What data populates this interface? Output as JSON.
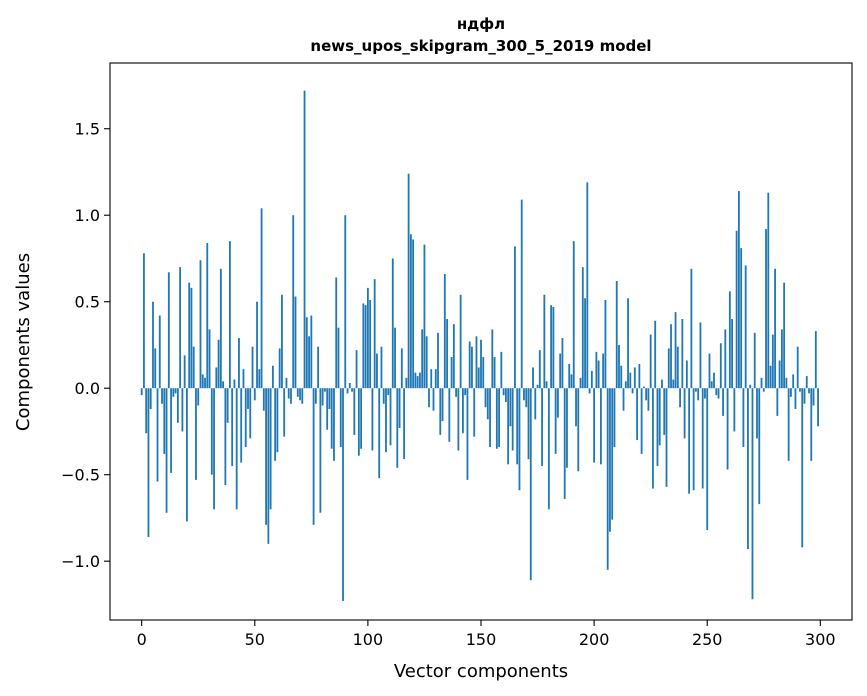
{
  "chart_data": {
    "type": "bar",
    "title": "ндфл",
    "subtitle": "news_upos_skipgram_300_5_2019 model",
    "xlabel": "Vector components",
    "ylabel": "Components values",
    "xlim": [
      -14,
      314
    ],
    "ylim": [
      -1.34,
      1.88
    ],
    "xticks": [
      0,
      50,
      100,
      150,
      200,
      250,
      300
    ],
    "yticks": [
      -1.0,
      -0.5,
      0.0,
      0.5,
      1.0,
      1.5
    ],
    "xtick_labels": [
      "0",
      "50",
      "100",
      "150",
      "200",
      "250",
      "300"
    ],
    "ytick_labels": [
      "−1.0",
      "−0.5",
      "0.0",
      "0.5",
      "1.0",
      "1.5"
    ],
    "grid": false,
    "bar_color": "#1f77b4",
    "values": [
      -0.04,
      0.78,
      -0.26,
      -0.86,
      -0.12,
      0.5,
      0.23,
      -0.54,
      0.42,
      -0.09,
      -0.38,
      -0.72,
      0.67,
      -0.49,
      -0.05,
      -0.03,
      -0.2,
      0.7,
      -0.25,
      0.19,
      -0.77,
      0.61,
      0.58,
      0.24,
      -0.53,
      -0.1,
      0.74,
      0.08,
      0.06,
      0.84,
      0.34,
      -0.5,
      -0.7,
      0.12,
      0.28,
      0.69,
      0.04,
      -0.56,
      -0.2,
      0.85,
      -0.45,
      0.05,
      -0.7,
      0.29,
      -0.43,
      0.11,
      -0.34,
      -0.12,
      -0.29,
      0.24,
      -0.07,
      0.5,
      0.11,
      1.04,
      -0.13,
      -0.79,
      -0.9,
      -0.7,
      0.13,
      -0.42,
      -0.37,
      0.23,
      0.54,
      -0.28,
      0.06,
      -0.06,
      -0.09,
      1.0,
      0.53,
      -0.05,
      -0.07,
      -0.09,
      1.72,
      0.41,
      0.3,
      0.42,
      -0.79,
      -0.09,
      0.24,
      -0.72,
      -0.1,
      -0.02,
      -0.24,
      -0.12,
      -0.35,
      -0.42,
      0.64,
      0.35,
      -0.34,
      -1.23,
      1.0,
      -0.03,
      0.03,
      -0.02,
      -0.27,
      0.22,
      -0.39,
      -0.35,
      0.49,
      0.48,
      0.58,
      0.51,
      -0.36,
      0.63,
      0.2,
      -0.52,
      0.24,
      -0.09,
      -0.37,
      -0.04,
      -0.33,
      0.75,
      0.35,
      -0.46,
      -0.23,
      0.23,
      -0.41,
      0.06,
      1.24,
      0.89,
      0.86,
      0.09,
      0.07,
      0.09,
      0.34,
      0.83,
      0.3,
      -0.11,
      0.11,
      -0.13,
      0.11,
      0.32,
      -0.27,
      -0.19,
      0.66,
      0.4,
      -0.31,
      0.18,
      0.37,
      -0.05,
      -0.36,
      0.54,
      -0.26,
      -0.04,
      -0.53,
      0.27,
      0.24,
      -0.28,
      0.3,
      0.12,
      0.28,
      0.18,
      -0.11,
      -0.18,
      -0.34,
      0.34,
      0.18,
      -0.35,
      -0.34,
      0.21,
      -0.04,
      -0.08,
      -0.44,
      -0.22,
      -0.36,
      0.82,
      -0.44,
      -0.59,
      1.09,
      -0.07,
      -0.11,
      -0.41,
      -1.11,
      0.12,
      -0.18,
      0.02,
      0.22,
      -0.45,
      0.54,
      0.04,
      -0.7,
      0.48,
      0.47,
      -0.38,
      -0.17,
      0.2,
      0.29,
      -0.64,
      -0.46,
      0.14,
      0.08,
      0.85,
      -0.22,
      -0.48,
      0.06,
      0.7,
      0.52,
      1.19,
      -0.03,
      0.1,
      -0.43,
      0.21,
      0.16,
      -0.44,
      0.2,
      0.51,
      -1.05,
      -0.83,
      -0.76,
      -0.34,
      0.62,
      0.25,
      0.13,
      -0.13,
      0.04,
      0.52,
      0.09,
      -0.03,
      0.12,
      -0.3,
      0.14,
      -0.38,
      0.01,
      -0.07,
      -0.13,
      0.31,
      -0.58,
      0.39,
      -0.45,
      -0.33,
      0.05,
      -0.27,
      -0.57,
      0.23,
      0.37,
      0.05,
      0.44,
      0.24,
      -0.11,
      0.4,
      -0.29,
      0.16,
      -0.61,
      0.69,
      -0.59,
      -0.02,
      -0.07,
      0.38,
      -0.58,
      -0.06,
      -0.82,
      0.2,
      0.04,
      0.09,
      -0.04,
      -0.06,
      0.26,
      -0.16,
      0.34,
      -0.47,
      0.56,
      0.4,
      -0.25,
      0.91,
      1.14,
      0.81,
      -0.34,
      0.71,
      -0.93,
      0.02,
      -1.22,
      0.32,
      -0.29,
      -0.67,
      0.06,
      -0.02,
      0.92,
      1.13,
      0.13,
      0.31,
      0.69,
      -0.16,
      0.16,
      0.34,
      0.61,
      0.06,
      -0.42,
      -0.05,
      0.08,
      -0.12,
      0.24,
      -0.02,
      -0.92,
      -0.09,
      0.07,
      -0.03,
      -0.42,
      -0.1,
      0.33,
      -0.22
    ]
  }
}
